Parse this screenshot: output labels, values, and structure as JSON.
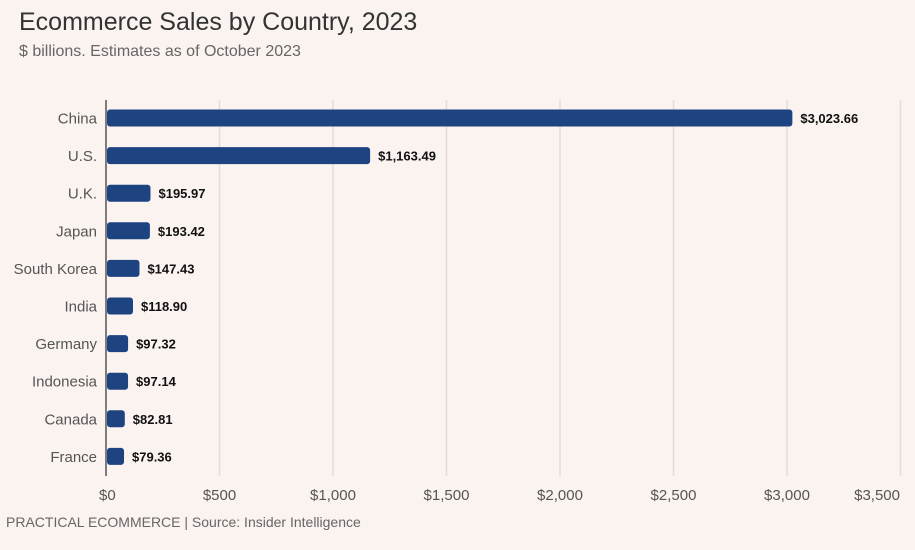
{
  "header": {
    "title": "Ecommerce Sales by Country, 2023",
    "subtitle": "$ billions. Estimates as of October 2023"
  },
  "footer": {
    "text": "PRACTICAL ECOMMERCE | Source: Insider Intelligence"
  },
  "colors": {
    "bar": "#1d4380",
    "gridline": "#e3dcd8",
    "axis": "#555555",
    "background": "#faf3f0"
  },
  "chart_data": {
    "type": "bar",
    "orientation": "horizontal",
    "title": "Ecommerce Sales by Country, 2023",
    "subtitle": "$ billions. Estimates as of October 2023",
    "categories": [
      "China",
      "U.S.",
      "U.K.",
      "Japan",
      "South Korea",
      "India",
      "Germany",
      "Indonesia",
      "Canada",
      "France"
    ],
    "values": [
      3023.66,
      1163.49,
      195.97,
      193.42,
      147.43,
      118.9,
      97.32,
      97.14,
      82.81,
      79.36
    ],
    "data_labels": [
      "$3,023.66",
      "$1,163.49",
      "$195.97",
      "$193.42",
      "$147.43",
      "$118.90",
      "$97.32",
      "$97.14",
      "$82.81",
      "$79.36"
    ],
    "xlim": [
      0,
      3500
    ],
    "xticks": [
      0,
      500,
      1000,
      1500,
      2000,
      2500,
      3000,
      3500
    ],
    "xtick_labels": [
      "$0",
      "$500",
      "$1,000",
      "$1,500",
      "$2,000",
      "$2,500",
      "$3,000",
      "$3,500"
    ],
    "xlabel": "",
    "ylabel": "",
    "grid": true,
    "legend": "none"
  }
}
